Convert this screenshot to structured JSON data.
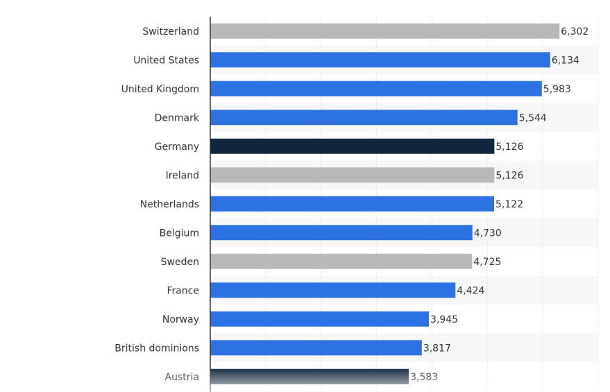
{
  "chart_data": {
    "type": "bar",
    "orientation": "horizontal",
    "categories": [
      "Switzerland",
      "United States",
      "United Kingdom",
      "Denmark",
      "Germany",
      "Ireland",
      "Netherlands",
      "Belgium",
      "Sweden",
      "France",
      "Norway",
      "British dominions",
      "Austria"
    ],
    "values": [
      6302,
      6134,
      5983,
      5544,
      5126,
      5126,
      5122,
      4730,
      4725,
      4424,
      3945,
      3817,
      3583
    ],
    "value_labels": [
      "6,302",
      "6,134",
      "5,983",
      "5,544",
      "5,126",
      "5,126",
      "5,122",
      "4,730",
      "4,725",
      "4,424",
      "3,945",
      "3,817",
      "3,583"
    ],
    "bar_colors": [
      "#b8b8b8",
      "#2c72e2",
      "#2c72e2",
      "#2c72e2",
      "#0f2540",
      "#b8b8b8",
      "#2c72e2",
      "#2c72e2",
      "#b8b8b8",
      "#2c72e2",
      "#2c72e2",
      "#2c72e2",
      "#0f2540"
    ],
    "title": "",
    "xlabel": "",
    "ylabel": "",
    "xlim": [
      0,
      7000
    ],
    "grid": true,
    "legend": "none"
  }
}
